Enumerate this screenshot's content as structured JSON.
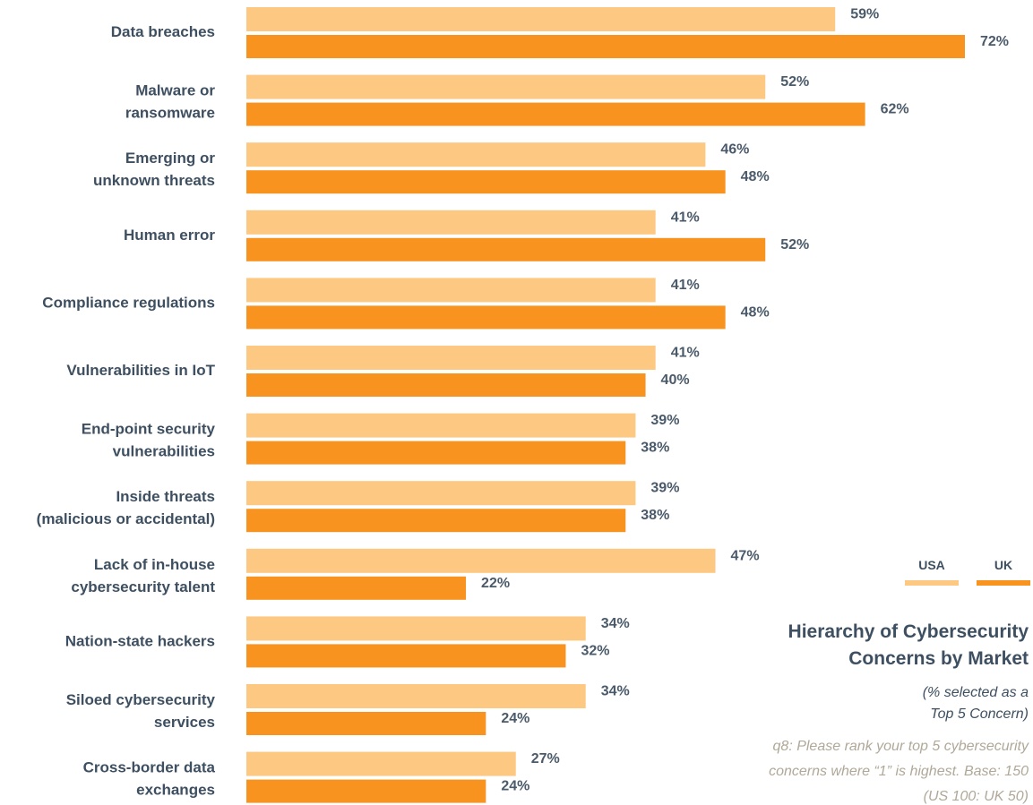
{
  "chart_data": {
    "type": "bar",
    "orientation": "horizontal",
    "title": "Hierarchy of Cybersecurity\nConcerns by Market",
    "subtitle": "(% selected as a\nTop 5 Concern)",
    "note": "q8: Please rank your top 5 cybersecurity\nconcerns where “1” is highest. Base: 150\n(US 100: UK 50)",
    "categories": [
      "Data breaches",
      "Malware or\nransomware",
      "Emerging or\nunknown threats",
      "Human error",
      "Compliance regulations",
      "Vulnerabilities in IoT",
      "End-point security\nvulnerabilities",
      "Inside threats\n(malicious or accidental)",
      "Lack of in-house\ncybersecurity talent",
      "Nation-state hackers",
      "Siloed cybersecurity\nservices",
      "Cross-border data\nexchanges"
    ],
    "series": [
      {
        "name": "USA",
        "color": "#fdc882",
        "values": [
          59,
          52,
          46,
          41,
          41,
          41,
          39,
          39,
          47,
          34,
          34,
          27
        ],
        "value_labels": [
          "59%",
          "52%",
          "46%",
          "41%",
          "41%",
          "41%",
          "39%",
          "39%",
          "47%",
          "34%",
          "34%",
          "27%"
        ]
      },
      {
        "name": "UK",
        "color": "#f7931e",
        "values": [
          72,
          62,
          48,
          52,
          48,
          40,
          38,
          38,
          22,
          32,
          24,
          24
        ],
        "value_labels": [
          "72%",
          "62%",
          "48%",
          "52%",
          "48%",
          "40%",
          "38%",
          "38%",
          "22%",
          "32%",
          "24%",
          "24%"
        ]
      }
    ]
  }
}
